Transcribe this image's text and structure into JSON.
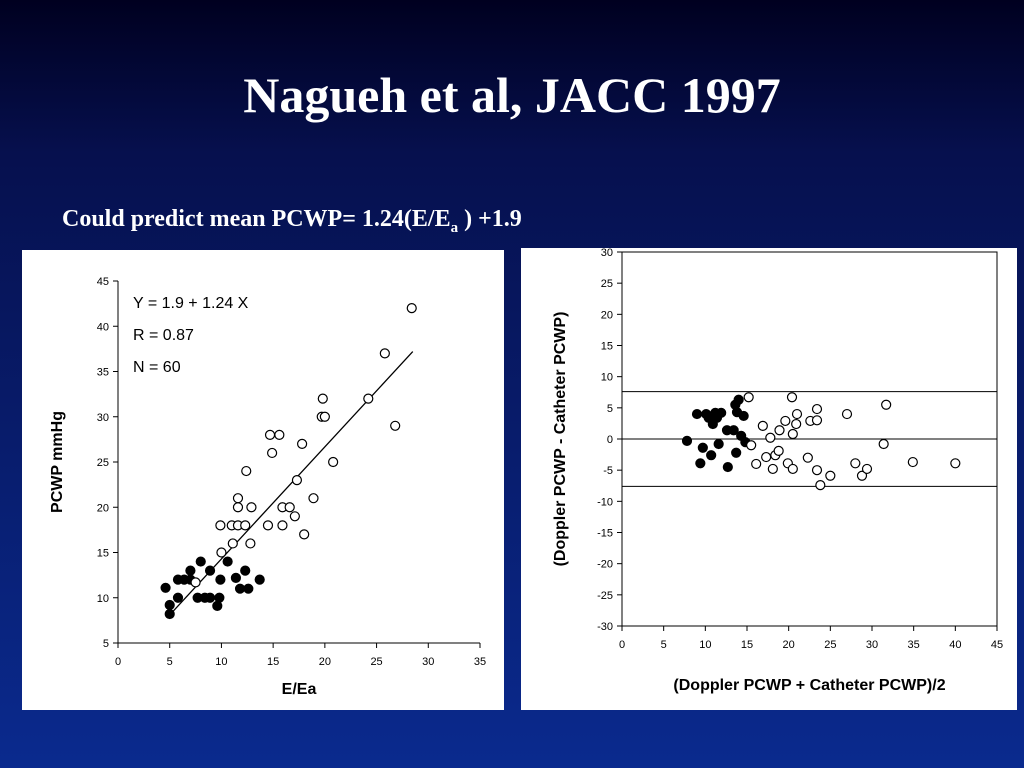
{
  "slide": {
    "title": "Nagueh et al, JACC 1997",
    "subtitle": [
      "Could predict mean PCWP= 1.24(E/E",
      "a",
      " ) +1.9"
    ]
  },
  "chart_data": [
    {
      "type": "scatter",
      "xlabel": "E/Ea",
      "ylabel": "PCWP  mmHg",
      "annotations": [
        "Y = 1.9 + 1.24  X",
        "R = 0.87",
        "N = 60"
      ],
      "xlim": [
        0,
        35
      ],
      "ylim": [
        5,
        45
      ],
      "xticks": [
        0,
        5,
        10,
        15,
        20,
        25,
        30,
        35
      ],
      "yticks": [
        5,
        10,
        15,
        20,
        25,
        30,
        35,
        40,
        45
      ],
      "frame": false,
      "series": [
        {
          "marker": "filled",
          "color": "#000000",
          "x": [
            4.6,
            5.0,
            5.0,
            5.8,
            5.8,
            6.4,
            7.0,
            7.0,
            7.7,
            8.0,
            8.4,
            8.9,
            8.9,
            9.6,
            9.8,
            9.9,
            10.6,
            11.4,
            11.8,
            12.3,
            12.6,
            13.7
          ],
          "values": [
            11.1,
            9.2,
            8.2,
            10.0,
            12.0,
            12.0,
            13.0,
            12.0,
            10.0,
            14.0,
            10.0,
            10.0,
            13.0,
            9.1,
            10.0,
            12.0,
            14.0,
            12.2,
            11.0,
            13.0,
            11.0,
            12.0
          ]
        },
        {
          "marker": "open",
          "color": "#000000",
          "x": [
            7.5,
            10,
            9.9,
            11,
            11.6,
            12.3,
            11.1,
            11.6,
            11.6,
            12.8,
            12.9,
            12.4,
            14.5,
            14.7,
            14.9,
            15.6,
            15.9,
            15.9,
            16.6,
            17.1,
            17.3,
            17.8,
            18,
            18.9,
            19.7,
            19.8,
            20,
            20.8,
            24.2,
            25.8,
            26.8,
            28.4
          ],
          "values": [
            11.7,
            15,
            18,
            18,
            18,
            18,
            16,
            21,
            20,
            16,
            20,
            24,
            18,
            28,
            26,
            28,
            20,
            18,
            20,
            19,
            23,
            27,
            17,
            21,
            30,
            32,
            30,
            25,
            32,
            37,
            29,
            42
          ]
        }
      ],
      "fit": {
        "x": [
          5,
          28.5
        ],
        "y": [
          8.1,
          37.2
        ]
      }
    },
    {
      "type": "scatter",
      "xlabel": "(Doppler PCWP + Catheter PCWP)/2",
      "ylabel": "(Doppler PCWP - Catheter PCWP)",
      "xlim": [
        0,
        45
      ],
      "ylim": [
        -30,
        30
      ],
      "xticks": [
        0,
        5,
        10,
        15,
        20,
        25,
        30,
        35,
        40,
        45
      ],
      "yticks": [
        -30,
        -25,
        -20,
        -15,
        -10,
        -5,
        0,
        5,
        10,
        15,
        20,
        25,
        30
      ],
      "frame": true,
      "hlines": [
        7.6,
        0,
        -7.6
      ],
      "series": [
        {
          "marker": "filled",
          "color": "#000000",
          "x": [
            7.8,
            9,
            9.4,
            9.7,
            10.1,
            10.4,
            10.7,
            10.9,
            11.2,
            11.4,
            11.6,
            11.9,
            12.6,
            12.7,
            13.4,
            13.6,
            13.7,
            13.8,
            14,
            14.3,
            14.6,
            14.8
          ],
          "values": [
            -0.3,
            4,
            -3.9,
            -1.4,
            4,
            3.4,
            -2.6,
            2.4,
            4.2,
            3.4,
            -0.8,
            4.2,
            1.4,
            -4.5,
            1.4,
            5.5,
            -2.2,
            4.3,
            6.3,
            0.5,
            3.7,
            -0.5
          ]
        },
        {
          "marker": "open",
          "color": "#000000",
          "x": [
            15.2,
            15.5,
            16.1,
            16.9,
            17.3,
            17.8,
            18.1,
            18.4,
            18.8,
            18.9,
            19.6,
            19.9,
            20.4,
            20.5,
            20.5,
            20.9,
            21,
            22.3,
            22.6,
            23.4,
            23.4,
            23.4,
            23.8,
            25,
            27,
            28,
            28.8,
            29.4,
            31.4,
            31.7,
            34.9,
            40
          ],
          "values": [
            6.7,
            -1,
            -4,
            2.1,
            -2.9,
            0.2,
            -4.8,
            -2.6,
            -1.9,
            1.4,
            2.9,
            -3.9,
            6.7,
            0.8,
            -4.8,
            2.4,
            4,
            -3,
            2.9,
            3,
            -5,
            4.8,
            -7.4,
            -5.9,
            4,
            -3.9,
            -5.9,
            -4.8,
            -0.8,
            5.5,
            -3.7,
            -3.9
          ]
        }
      ]
    }
  ]
}
